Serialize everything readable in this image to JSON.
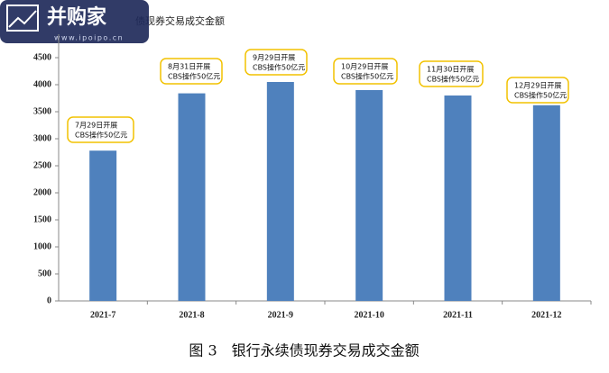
{
  "watermark": {
    "name": "并购家",
    "url": "www.ipoipo.cn"
  },
  "chart_data": {
    "type": "bar",
    "title": "债现券交易成交金额",
    "categories": [
      "2021-7",
      "2021-8",
      "2021-9",
      "2021-10",
      "2021-11",
      "2021-12"
    ],
    "values": [
      2780,
      3840,
      4050,
      3900,
      3800,
      3620
    ],
    "color": "#4f81bd",
    "ylim": [
      0,
      4500
    ],
    "yticks": [
      0,
      500,
      1000,
      1500,
      2000,
      2500,
      3000,
      3500,
      4000,
      4500
    ],
    "annotations": [
      [
        "7月29日开展",
        "CBS操作50亿元"
      ],
      [
        "8月31日开展",
        "CBS操作50亿元"
      ],
      [
        "9月29日开展",
        "CBS操作50亿元"
      ],
      [
        "10月29日开展",
        "CBS操作50亿元"
      ],
      [
        "11月30日开展",
        "CBS操作50亿元"
      ],
      [
        "12月29日开展",
        "CBS操作50亿元"
      ]
    ],
    "caption": "图 3　银行永续债现券交易成交金额"
  }
}
